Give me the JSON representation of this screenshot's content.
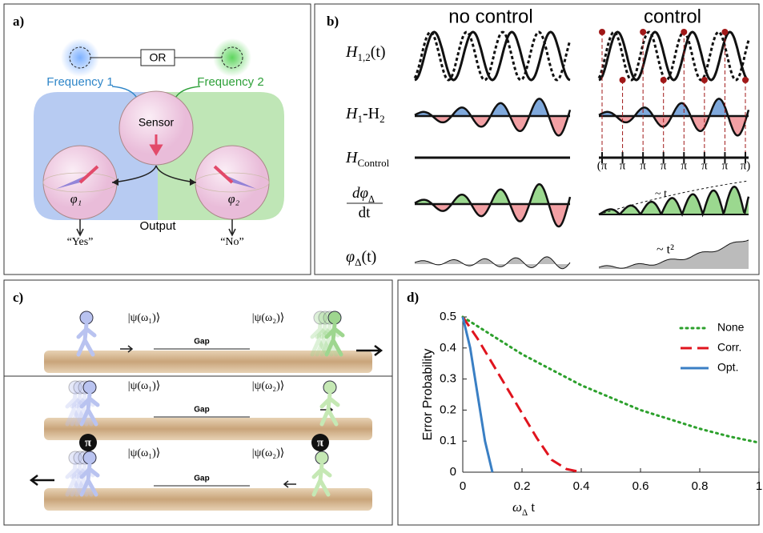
{
  "panel_a": {
    "label": "a)",
    "gate": "OR",
    "frequency_1": "Frequency 1",
    "frequency_2": "Frequency 2",
    "sensor": "Sensor",
    "phi_1": "φ₁",
    "phi_2": "φ₂",
    "output": "Output",
    "yes": "“Yes”",
    "no": "“No”"
  },
  "panel_b": {
    "label": "b)",
    "no_control": "no control",
    "control": "control",
    "row_labels": [
      [
        "H",
        "1,2",
        "(t)"
      ],
      [
        "H",
        "1",
        "-H",
        "2"
      ],
      [
        "H",
        "Control"
      ],
      [
        "φ",
        "Δ",
        "(t)"
      ]
    ],
    "rate_numerator": [
      "dφ",
      "Δ"
    ],
    "rate_denominator": "dt",
    "pulses": [
      "(π",
      "π",
      "π",
      "π",
      "π",
      "π",
      "π",
      "π)"
    ],
    "linear_note": "~ t",
    "quadratic_note": "~ t²"
  },
  "panel_c": {
    "label": "c)",
    "ket_1": "|ψ(ω₁)⟩",
    "ket_2": "|ψ(ω₂)⟩",
    "gap": "Gap",
    "pulse": "π"
  },
  "chart_data": {
    "type": "line",
    "label": "d)",
    "ylabel": "Error Probability",
    "xlabel": [
      "ω",
      "Δ",
      " t"
    ],
    "xlim": [
      0,
      1
    ],
    "ylim": [
      0,
      0.5
    ],
    "xticks": [
      0,
      0.2,
      0.4,
      0.6,
      0.8,
      1
    ],
    "yticks": [
      0,
      0.1,
      0.2,
      0.3,
      0.4,
      0.5
    ],
    "series": [
      {
        "name": "None",
        "color": "#2ca02c",
        "dash": "dotted",
        "x": [
          0,
          0.1,
          0.2,
          0.3,
          0.4,
          0.5,
          0.6,
          0.7,
          0.8,
          0.9,
          1
        ],
        "values": [
          0.5,
          0.44,
          0.38,
          0.33,
          0.28,
          0.24,
          0.2,
          0.17,
          0.14,
          0.115,
          0.095
        ]
      },
      {
        "name": "Corr.",
        "color": "#e0141e",
        "dash": "dashed",
        "x": [
          0,
          0.05,
          0.1,
          0.15,
          0.2,
          0.25,
          0.3,
          0.35,
          0.4
        ],
        "values": [
          0.5,
          0.43,
          0.35,
          0.27,
          0.19,
          0.11,
          0.04,
          0.01,
          0
        ]
      },
      {
        "name": "Opt.",
        "color": "#3a7fc4",
        "dash": "solid",
        "x": [
          0,
          0.025,
          0.05,
          0.075,
          0.1
        ],
        "values": [
          0.5,
          0.4,
          0.25,
          0.1,
          0
        ]
      }
    ]
  }
}
